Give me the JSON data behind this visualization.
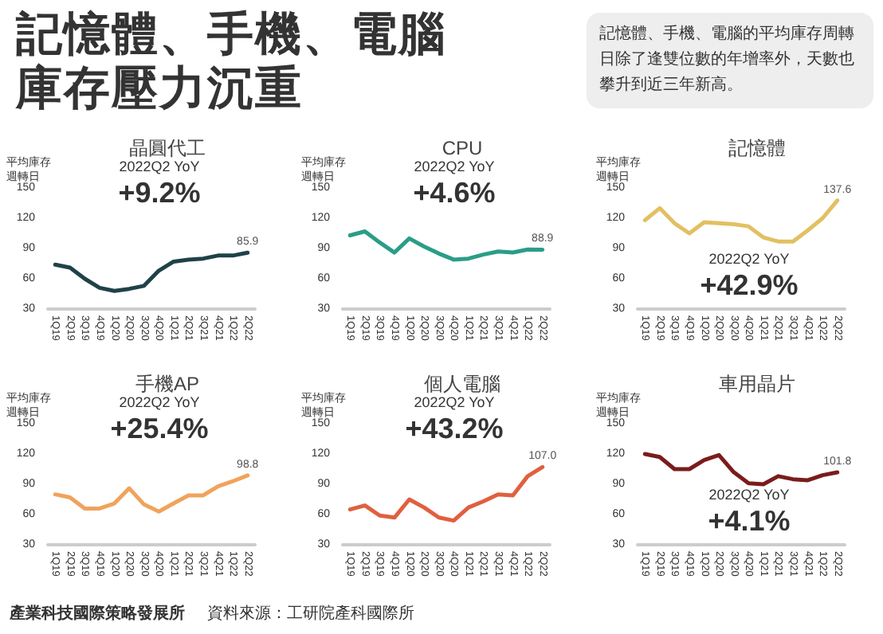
{
  "chart_data": [
    {
      "type": "other",
      "title": "記憶體、手機、電腦庫存壓力沉重",
      "subtitle": "記憶體、手機、電腦的平均庫存周轉日除了逢雙位數的年增率外，天數也攀升到近三年新高。",
      "annotations": [
        "產業科技國際策略發展所",
        "資料來源：工研院產科國際所"
      ]
    },
    {
      "type": "line",
      "title": "晶圓代工",
      "ylabel": "平均庫存週轉日",
      "annotations": [
        "2022Q2 YoY",
        "+9.2%"
      ],
      "categories": [
        "1Q19",
        "2Q19",
        "3Q19",
        "4Q19",
        "1Q20",
        "2Q20",
        "3Q20",
        "4Q20",
        "1Q21",
        "2Q21",
        "3Q21",
        "4Q21",
        "1Q22",
        "2Q22"
      ],
      "ylim": [
        30,
        150
      ],
      "yticks": [
        30,
        60,
        90,
        120,
        150
      ],
      "series": [
        {
          "color": "#1f4248",
          "values": [
            74,
            71,
            60,
            51,
            48,
            50,
            53,
            68,
            77,
            79,
            80,
            83,
            83,
            85.9
          ],
          "value_labels": [
            null,
            null,
            null,
            null,
            null,
            null,
            null,
            null,
            null,
            null,
            null,
            null,
            null,
            "85.9"
          ]
        }
      ]
    },
    {
      "type": "line",
      "title": "CPU",
      "ylabel": "平均庫存週轉日",
      "annotations": [
        "2022Q2 YoY",
        "+4.6%"
      ],
      "categories": [
        "1Q19",
        "2Q19",
        "3Q19",
        "4Q19",
        "1Q20",
        "2Q20",
        "3Q20",
        "4Q20",
        "1Q21",
        "2Q21",
        "3Q21",
        "4Q21",
        "1Q22",
        "2Q22"
      ],
      "ylim": [
        30,
        150
      ],
      "yticks": [
        30,
        60,
        90,
        120,
        150
      ],
      "series": [
        {
          "color": "#2a9d88",
          "values": [
            103,
            107,
            96,
            86,
            100,
            92,
            85,
            79,
            80,
            84,
            87,
            86,
            89,
            88.9
          ],
          "value_labels": [
            null,
            null,
            null,
            null,
            null,
            null,
            null,
            null,
            null,
            null,
            null,
            null,
            null,
            "88.9"
          ]
        }
      ]
    },
    {
      "type": "line",
      "title": "記憶體",
      "ylabel": "平均庫存週轉日",
      "annotations": [
        "2022Q2 YoY",
        "+42.9%"
      ],
      "categories": [
        "1Q19",
        "2Q19",
        "3Q19",
        "4Q19",
        "1Q20",
        "2Q20",
        "3Q20",
        "4Q20",
        "1Q21",
        "2Q21",
        "3Q21",
        "4Q21",
        "1Q22",
        "2Q22"
      ],
      "ylim": [
        30,
        150
      ],
      "yticks": [
        30,
        60,
        90,
        120,
        150
      ],
      "series": [
        {
          "color": "#e2c062",
          "values": [
            118,
            130,
            115,
            105,
            116,
            115,
            114,
            112,
            101,
            97,
            97,
            108,
            120,
            137.6
          ],
          "value_labels": [
            null,
            null,
            null,
            null,
            null,
            null,
            null,
            null,
            null,
            null,
            null,
            null,
            null,
            "137.6"
          ]
        }
      ]
    },
    {
      "type": "line",
      "title": "手機AP",
      "ylabel": "平均庫存週轉日",
      "annotations": [
        "2022Q2 YoY",
        "+25.4%"
      ],
      "categories": [
        "1Q19",
        "2Q19",
        "3Q19",
        "4Q19",
        "1Q20",
        "2Q20",
        "3Q20",
        "4Q20",
        "1Q21",
        "2Q21",
        "3Q21",
        "4Q21",
        "1Q22",
        "2Q22"
      ],
      "ylim": [
        30,
        150
      ],
      "yticks": [
        30,
        60,
        90,
        120,
        150
      ],
      "series": [
        {
          "color": "#f0a35c",
          "values": [
            80,
            77,
            66,
            66,
            71,
            86,
            70,
            63,
            71,
            79,
            79,
            88,
            93,
            98.8
          ],
          "value_labels": [
            null,
            null,
            null,
            null,
            null,
            null,
            null,
            null,
            null,
            null,
            null,
            null,
            null,
            "98.8"
          ]
        }
      ]
    },
    {
      "type": "line",
      "title": "個人電腦",
      "ylabel": "平均庫存週轉日",
      "annotations": [
        "2022Q2 YoY",
        "+43.2%"
      ],
      "categories": [
        "1Q19",
        "2Q19",
        "3Q19",
        "4Q19",
        "1Q20",
        "2Q20",
        "3Q20",
        "4Q20",
        "1Q21",
        "2Q21",
        "3Q21",
        "4Q21",
        "1Q22",
        "2Q22"
      ],
      "ylim": [
        30,
        150
      ],
      "yticks": [
        30,
        60,
        90,
        120,
        150
      ],
      "series": [
        {
          "color": "#e0603f",
          "values": [
            65,
            69,
            59,
            57,
            75,
            67,
            57,
            54,
            67,
            73,
            80,
            79,
            98,
            107.0
          ],
          "value_labels": [
            null,
            null,
            null,
            null,
            null,
            null,
            null,
            null,
            null,
            null,
            null,
            null,
            null,
            "107.0"
          ]
        }
      ]
    },
    {
      "type": "line",
      "title": "車用晶片",
      "ylabel": "平均庫存週轉日",
      "annotations": [
        "2022Q2 YoY",
        "+4.1%"
      ],
      "categories": [
        "1Q19",
        "2Q19",
        "3Q19",
        "4Q19",
        "1Q20",
        "2Q20",
        "3Q20",
        "4Q20",
        "1Q21",
        "2Q21",
        "3Q21",
        "4Q21",
        "1Q22",
        "2Q22"
      ],
      "ylim": [
        30,
        150
      ],
      "yticks": [
        30,
        60,
        90,
        120,
        150
      ],
      "series": [
        {
          "color": "#7a1c1c",
          "values": [
            120,
            117,
            105,
            105,
            114,
            119,
            102,
            91,
            90,
            98,
            95,
            94,
            99,
            101.8
          ],
          "value_labels": [
            null,
            null,
            null,
            null,
            null,
            null,
            null,
            null,
            null,
            null,
            null,
            null,
            null,
            "101.8"
          ]
        }
      ]
    }
  ]
}
